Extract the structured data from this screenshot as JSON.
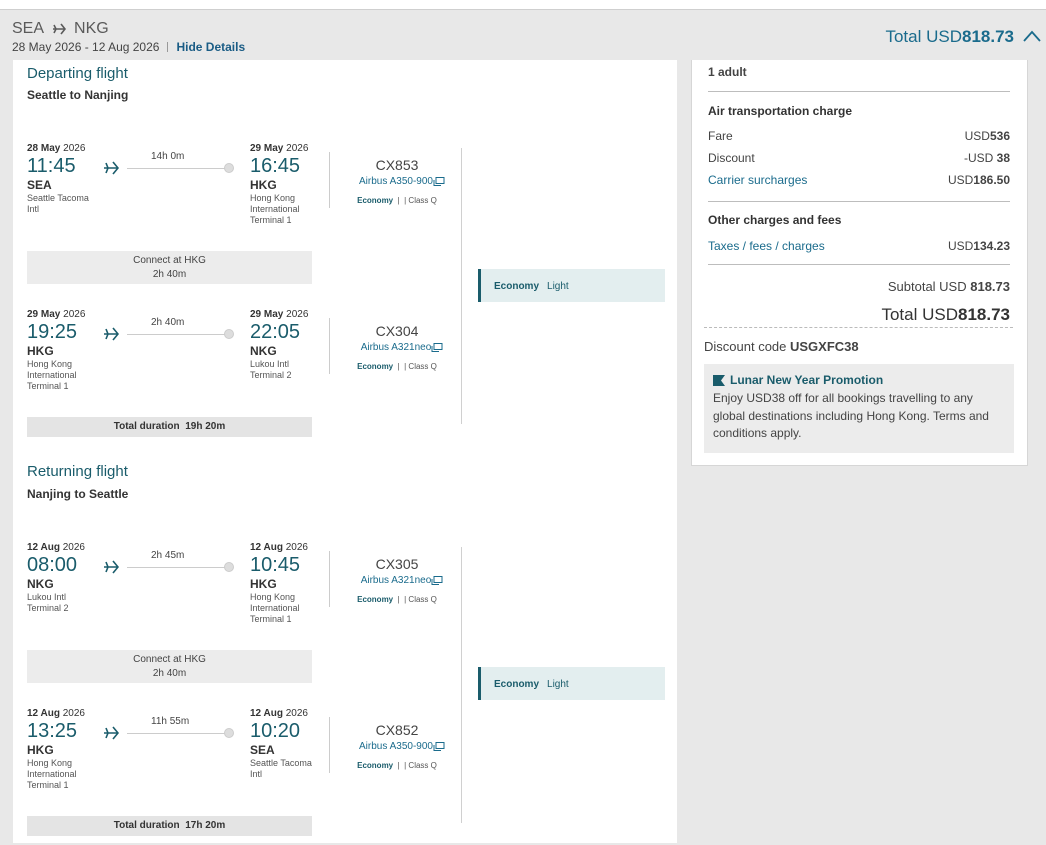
{
  "header": {
    "origin": "SEA",
    "destination": "NKG",
    "dates": "28 May 2026 - 12 Aug 2026",
    "hide_details": "Hide Details",
    "total_prefix": "Total USD",
    "total_amount": "818.73"
  },
  "departing": {
    "title": "Departing flight",
    "subtitle": "Seattle to Nanjing",
    "segments": [
      {
        "dep_date_day": "28 May",
        "dep_date_year": "2026",
        "dep_time": "11:45",
        "dep_code": "SEA",
        "dep_airport": "Seattle Tacoma Intl",
        "duration": "14h 0m",
        "arr_date_day": "29 May",
        "arr_date_year": "2026",
        "arr_time": "16:45",
        "arr_code": "HKG",
        "arr_airport": "Hong Kong International Terminal 1",
        "flight": "CX853",
        "aircraft": "Airbus A350-900",
        "cabin": "Economy",
        "class": "Class Q"
      },
      {
        "dep_date_day": "29 May",
        "dep_date_year": "2026",
        "dep_time": "19:25",
        "dep_code": "HKG",
        "dep_airport": "Hong Kong International Terminal 1",
        "duration": "2h 40m",
        "arr_date_day": "29 May",
        "arr_date_year": "2026",
        "arr_time": "22:05",
        "arr_code": "NKG",
        "arr_airport": "Lukou Intl Terminal 2",
        "flight": "CX304",
        "aircraft": "Airbus A321neo",
        "cabin": "Economy",
        "class": "Class Q"
      }
    ],
    "connect_label": "Connect at HKG",
    "connect_time": "2h 40m",
    "total_duration_label": "Total duration",
    "total_duration": "19h 20m",
    "fare_cabin": "Economy",
    "fare_brand": "Light"
  },
  "returning": {
    "title": "Returning flight",
    "subtitle": "Nanjing to Seattle",
    "segments": [
      {
        "dep_date_day": "12 Aug",
        "dep_date_year": "2026",
        "dep_time": "08:00",
        "dep_code": "NKG",
        "dep_airport": "Lukou Intl Terminal 2",
        "duration": "2h 45m",
        "arr_date_day": "12 Aug",
        "arr_date_year": "2026",
        "arr_time": "10:45",
        "arr_code": "HKG",
        "arr_airport": "Hong Kong International Terminal 1",
        "flight": "CX305",
        "aircraft": "Airbus A321neo",
        "cabin": "Economy",
        "class": "Class Q"
      },
      {
        "dep_date_day": "12 Aug",
        "dep_date_year": "2026",
        "dep_time": "13:25",
        "dep_code": "HKG",
        "dep_airport": "Hong Kong International Terminal 1",
        "duration": "11h 55m",
        "arr_date_day": "12 Aug",
        "arr_date_year": "2026",
        "arr_time": "10:20",
        "arr_code": "SEA",
        "arr_airport": "Seattle Tacoma Intl",
        "flight": "CX852",
        "aircraft": "Airbus A350-900",
        "cabin": "Economy",
        "class": "Class Q"
      }
    ],
    "connect_label": "Connect at HKG",
    "connect_time": "2h 40m",
    "total_duration_label": "Total duration",
    "total_duration": "17h 20m",
    "fare_cabin": "Economy",
    "fare_brand": "Light"
  },
  "price": {
    "passengers": "1 adult",
    "air_title": "Air transportation charge",
    "fare_label": "Fare",
    "fare_cur": "USD",
    "fare_val": "536",
    "discount_label": "Discount",
    "discount_cur": "-USD ",
    "discount_val": "38",
    "surcharge_label": "Carrier surcharges",
    "surcharge_cur": "USD",
    "surcharge_val": "186.50",
    "other_title": "Other charges and fees",
    "taxes_label": "Taxes / fees / charges",
    "taxes_cur": "USD",
    "taxes_val": "134.23",
    "subtotal_prefix": "Subtotal USD ",
    "subtotal_val": "818.73",
    "total_prefix": "Total USD",
    "total_val": "818.73",
    "discount_code_label": "Discount code ",
    "discount_code": "USGXFC38"
  },
  "promo": {
    "title": "Lunar New Year Promotion",
    "text": "Enjoy USD38 off for all bookings travelling to any global destinations including Hong Kong. Terms and conditions apply."
  },
  "colors": {
    "accent": "#1a5c6b",
    "link": "#1a6b8c",
    "fare_box": "#e3eeef"
  }
}
